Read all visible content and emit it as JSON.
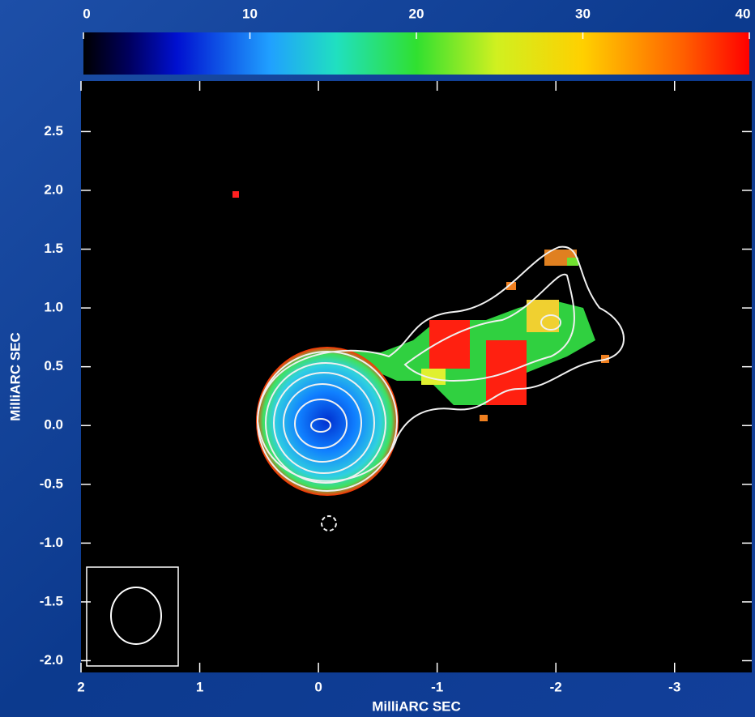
{
  "chart_data": {
    "type": "image",
    "x_label": "MilliARC SEC",
    "y_label": "MilliARC SEC",
    "xlim": [
      2,
      -3.65
    ],
    "xticks": [
      2,
      1,
      0,
      -1,
      -2,
      -3
    ],
    "ylim": [
      -2.1,
      2.93
    ],
    "yticks": [
      2.5,
      {
        "value": 2,
        "label": "2.0"
      },
      1.5,
      {
        "value": 1,
        "label": "1.0"
      },
      0.5,
      {
        "value": 0,
        "label": "0.0"
      },
      -0.5,
      {
        "value": -1,
        "label": "-1.0"
      },
      -1.5,
      {
        "value": -2,
        "label": "-2.0"
      }
    ],
    "colorbar_lim": [
      0,
      40
    ],
    "colorbar_ticks": [
      0,
      10,
      20,
      30,
      40
    ]
  }
}
